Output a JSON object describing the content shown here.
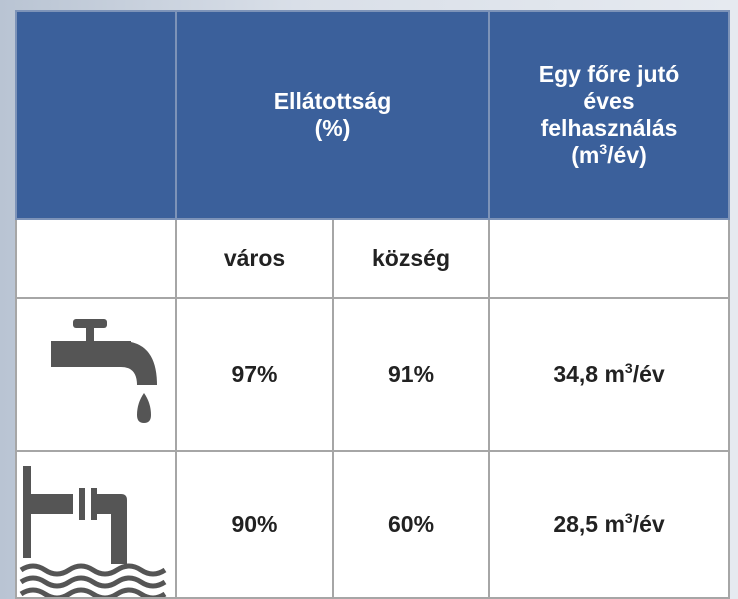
{
  "header": {
    "col1": [
      "Ellátottság",
      "(%)"
    ],
    "col3": {
      "lines": [
        "Egy főre jutó",
        "éves",
        "felhasználás"
      ],
      "last": {
        "pre": "(m",
        "sup": "3",
        "post": "/év)"
      }
    }
  },
  "subheader": [
    "város",
    "község"
  ],
  "rows": [
    {
      "varos": "97%",
      "kozseg": "91%",
      "use": {
        "pre": "34,8 m",
        "sup": "3",
        "post": "/év"
      }
    },
    {
      "varos": "90%",
      "kozseg": "60%",
      "use": {
        "pre": "28,5 m",
        "sup": "3",
        "post": "/év"
      }
    }
  ]
}
